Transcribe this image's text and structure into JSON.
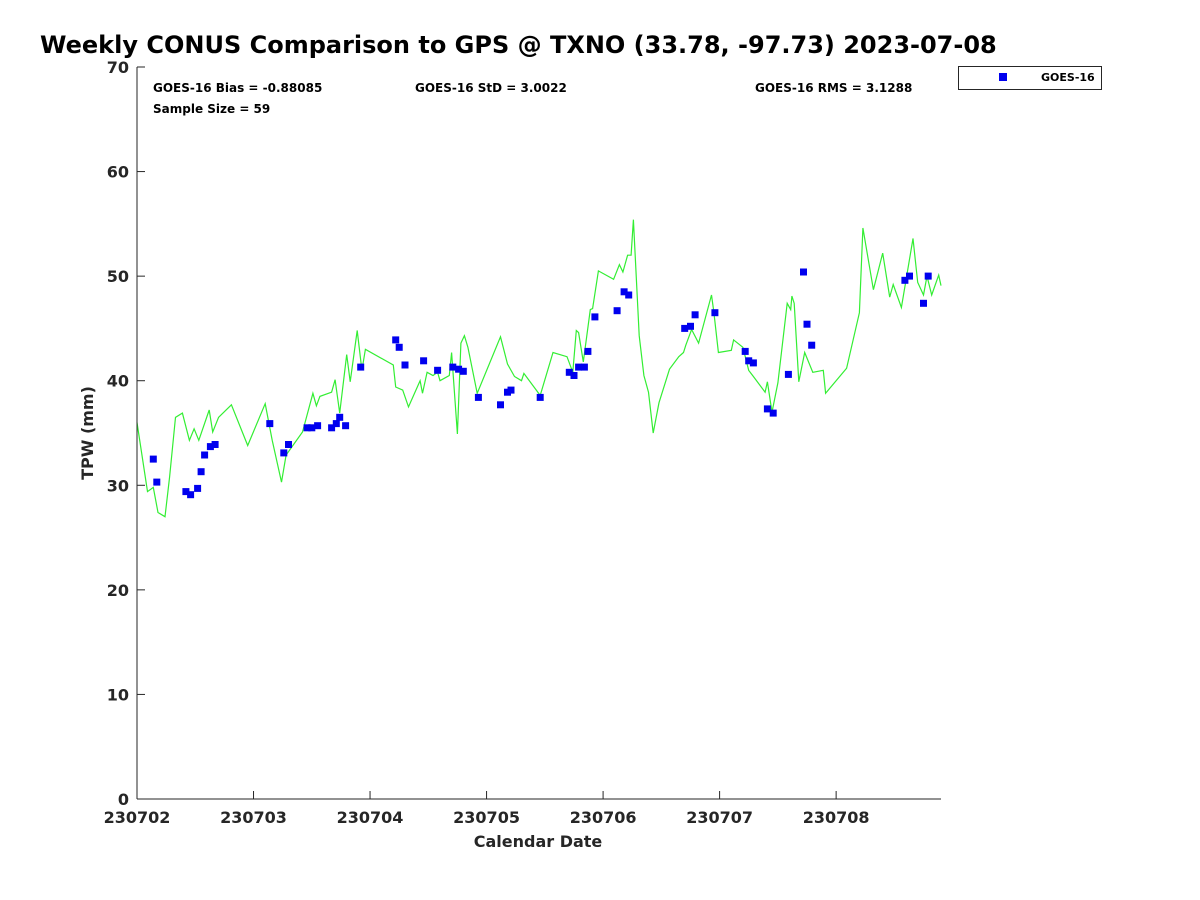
{
  "chart_data": {
    "type": "scatter",
    "title": "Weekly CONUS Comparison to GPS @ TXNO (33.78, -97.73) 2023-07-08",
    "xlabel": "Calendar Date",
    "ylabel": "TPW (mm)",
    "xlim": [
      0,
      6.9
    ],
    "ylim": [
      0,
      70
    ],
    "x_ticks": [
      0,
      1,
      2,
      3,
      4,
      5,
      6
    ],
    "x_tick_labels": [
      "230702",
      "230703",
      "230704",
      "230705",
      "230706",
      "230707",
      "230708"
    ],
    "y_ticks": [
      0,
      10,
      20,
      30,
      40,
      50,
      60,
      70
    ],
    "y_tick_labels": [
      "0",
      "10",
      "20",
      "30",
      "40",
      "50",
      "60",
      "70"
    ],
    "grid": false,
    "legend": {
      "position": "top-right",
      "entries": [
        "GOES-16"
      ]
    },
    "stats": {
      "bias": "GOES-16 Bias = -0.88085",
      "std": "GOES-16 StD = 3.0022",
      "rms": "GOES-16 RMS = 3.1288",
      "sample": "Sample Size = 59"
    },
    "colors": {
      "goes": "#0000ee",
      "gps": "#33ee33"
    },
    "series": [
      {
        "name": "GPS",
        "type": "line",
        "x": [
          0.0,
          0.09,
          0.14,
          0.18,
          0.24,
          0.28,
          0.33,
          0.39,
          0.45,
          0.49,
          0.53,
          0.62,
          0.65,
          0.7,
          0.81,
          0.95,
          1.1,
          1.16,
          1.24,
          1.28,
          1.42,
          1.51,
          1.54,
          1.57,
          1.67,
          1.7,
          1.74,
          1.8,
          1.83,
          1.89,
          1.93,
          1.96,
          2.2,
          2.22,
          2.28,
          2.33,
          2.43,
          2.45,
          2.49,
          2.54,
          2.58,
          2.6,
          2.68,
          2.7,
          2.75,
          2.78,
          2.81,
          2.84,
          2.92,
          3.12,
          3.18,
          3.24,
          3.3,
          3.32,
          3.46,
          3.57,
          3.69,
          3.74,
          3.77,
          3.79,
          3.83,
          3.89,
          3.91,
          3.96,
          4.09,
          4.14,
          4.17,
          4.21,
          4.24,
          4.26,
          4.31,
          4.35,
          4.39,
          4.43,
          4.48,
          4.57,
          4.65,
          4.69,
          4.71,
          4.76,
          4.82,
          4.93,
          4.95,
          4.99,
          5.1,
          5.12,
          5.2,
          5.25,
          5.29,
          5.39,
          5.41,
          5.45,
          5.5,
          5.58,
          5.61,
          5.62,
          5.64,
          5.68,
          5.73,
          5.8,
          5.89,
          5.91,
          6.09,
          6.2,
          6.23,
          6.32,
          6.4,
          6.46,
          6.49,
          6.56,
          6.66,
          6.7,
          6.75,
          6.78,
          6.82,
          6.88,
          6.9
        ],
        "y": [
          36.0,
          29.4,
          29.8,
          27.4,
          27.0,
          30.8,
          36.5,
          36.9,
          34.3,
          35.4,
          34.3,
          37.2,
          35.1,
          36.5,
          37.7,
          33.8,
          37.8,
          34.3,
          30.3,
          32.9,
          35.1,
          38.8,
          37.6,
          38.5,
          38.9,
          40.1,
          36.9,
          42.5,
          39.9,
          44.8,
          41.0,
          43.0,
          41.5,
          39.4,
          39.1,
          37.5,
          40.0,
          38.8,
          40.8,
          40.5,
          40.8,
          40.0,
          40.5,
          42.7,
          34.9,
          43.6,
          44.3,
          43.2,
          38.8,
          44.2,
          41.6,
          40.4,
          40.0,
          40.7,
          38.6,
          42.7,
          42.3,
          40.8,
          44.8,
          44.6,
          41.8,
          46.8,
          46.9,
          50.5,
          49.7,
          51.1,
          50.4,
          52.0,
          52.0,
          55.4,
          44.3,
          40.5,
          38.9,
          35.0,
          37.9,
          41.1,
          42.3,
          42.7,
          43.4,
          44.9,
          43.6,
          48.2,
          46.6,
          42.7,
          42.9,
          43.9,
          43.2,
          41.0,
          40.4,
          38.9,
          39.9,
          37.0,
          39.8,
          47.4,
          46.8,
          48.1,
          47.4,
          39.9,
          42.7,
          40.8,
          41.0,
          38.8,
          41.2,
          46.5,
          54.6,
          48.7,
          52.2,
          48.0,
          49.2,
          47.0,
          53.6,
          49.4,
          48.2,
          50.0,
          48.2,
          50.1,
          49.1
        ]
      },
      {
        "name": "GOES-16",
        "type": "scatter",
        "x": [
          0.14,
          0.17,
          0.42,
          0.46,
          0.52,
          0.55,
          0.58,
          0.63,
          0.67,
          1.14,
          1.26,
          1.3,
          1.46,
          1.5,
          1.55,
          1.67,
          1.71,
          1.74,
          1.79,
          1.92,
          2.22,
          2.25,
          2.3,
          2.46,
          2.58,
          2.71,
          2.76,
          2.8,
          2.93,
          3.12,
          3.18,
          3.21,
          3.46,
          3.71,
          3.75,
          3.79,
          3.84,
          3.87,
          3.93,
          4.12,
          4.18,
          4.22,
          4.7,
          4.75,
          4.79,
          4.96,
          5.22,
          5.25,
          5.29,
          5.41,
          5.46,
          5.59,
          5.72,
          5.75,
          5.79,
          6.59,
          6.63,
          6.75,
          6.79
        ],
        "y": [
          32.5,
          30.3,
          29.4,
          29.1,
          29.7,
          31.3,
          32.9,
          33.7,
          33.9,
          35.9,
          33.1,
          33.9,
          35.5,
          35.5,
          35.7,
          35.5,
          35.9,
          36.5,
          35.7,
          41.3,
          43.9,
          43.2,
          41.5,
          41.9,
          41.0,
          41.3,
          41.1,
          40.9,
          38.4,
          37.7,
          38.9,
          39.1,
          38.4,
          40.8,
          40.5,
          41.3,
          41.3,
          42.8,
          46.1,
          46.7,
          48.5,
          48.2,
          45.0,
          45.2,
          46.3,
          46.5,
          42.8,
          41.9,
          41.7,
          37.3,
          36.9,
          40.6,
          50.4,
          45.4,
          43.4,
          49.6,
          50.0,
          47.4,
          50.0
        ]
      }
    ]
  }
}
